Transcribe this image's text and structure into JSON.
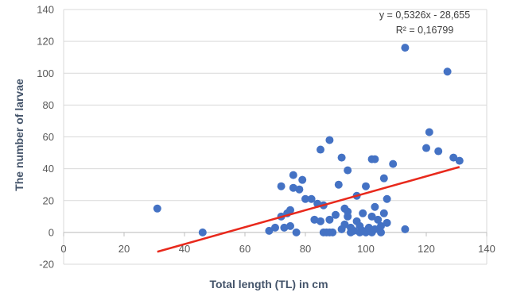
{
  "chart_data": {
    "type": "scatter",
    "title": "",
    "xlabel": "Total length (TL) in cm",
    "ylabel": "The number of larvae",
    "xlim": [
      0,
      140
    ],
    "ylim": [
      -20,
      140
    ],
    "xticks": [
      "0",
      "20",
      "40",
      "60",
      "80",
      "100",
      "120",
      "140"
    ],
    "yticks": [
      "-20",
      "0",
      "20",
      "40",
      "60",
      "80",
      "100",
      "120",
      "140"
    ],
    "grid": "horizontal",
    "legend": "none",
    "point_color": "#4472c4",
    "trendline_color": "#e8291c",
    "trendline": {
      "equation": "y = 0,5326x - 28,655",
      "r2": "R² = 0,16799",
      "slope": 0.5326,
      "intercept": -28.655,
      "x_range": [
        31,
        131
      ]
    },
    "points": [
      [
        31,
        15
      ],
      [
        46,
        0
      ],
      [
        68,
        1
      ],
      [
        70,
        3
      ],
      [
        72,
        29
      ],
      [
        72,
        10
      ],
      [
        73,
        3
      ],
      [
        74,
        12
      ],
      [
        75,
        14
      ],
      [
        75,
        4
      ],
      [
        76,
        36
      ],
      [
        76,
        28
      ],
      [
        77,
        0
      ],
      [
        78,
        27
      ],
      [
        79,
        33
      ],
      [
        80,
        21
      ],
      [
        82,
        21
      ],
      [
        83,
        8
      ],
      [
        84,
        18
      ],
      [
        85,
        52
      ],
      [
        85,
        7
      ],
      [
        86,
        17
      ],
      [
        86,
        0
      ],
      [
        87,
        0
      ],
      [
        88,
        58
      ],
      [
        88,
        8
      ],
      [
        88,
        0
      ],
      [
        89,
        0
      ],
      [
        90,
        11
      ],
      [
        91,
        30
      ],
      [
        92,
        47
      ],
      [
        92,
        2
      ],
      [
        93,
        15
      ],
      [
        93,
        5
      ],
      [
        94,
        39
      ],
      [
        94,
        13
      ],
      [
        94,
        10
      ],
      [
        95,
        3
      ],
      [
        95,
        0
      ],
      [
        96,
        1
      ],
      [
        97,
        23
      ],
      [
        97,
        7
      ],
      [
        98,
        4
      ],
      [
        98,
        0
      ],
      [
        99,
        12
      ],
      [
        99,
        1
      ],
      [
        100,
        29
      ],
      [
        100,
        0
      ],
      [
        101,
        3
      ],
      [
        102,
        46
      ],
      [
        102,
        10
      ],
      [
        102,
        0
      ],
      [
        103,
        46
      ],
      [
        103,
        16
      ],
      [
        103,
        2
      ],
      [
        104,
        8
      ],
      [
        105,
        4
      ],
      [
        105,
        0
      ],
      [
        106,
        34
      ],
      [
        106,
        12
      ],
      [
        107,
        21
      ],
      [
        107,
        6
      ],
      [
        109,
        43
      ],
      [
        113,
        116
      ],
      [
        113,
        2
      ],
      [
        120,
        53
      ],
      [
        121,
        63
      ],
      [
        124,
        51
      ],
      [
        127,
        101
      ],
      [
        129,
        47
      ],
      [
        131,
        45
      ]
    ]
  }
}
